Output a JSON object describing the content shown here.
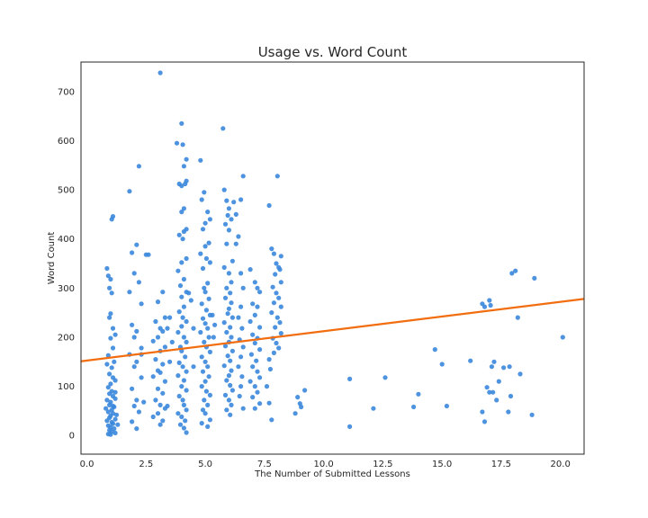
{
  "chart_data": {
    "type": "scatter",
    "title": "Usage vs. Word Count",
    "xlabel": "The Number of Submitted Lessons",
    "ylabel": "Word Count",
    "xlim": [
      -0.25,
      21.0
    ],
    "ylim": [
      -38,
      760
    ],
    "xticks": [
      "0.0",
      "2.5",
      "5.0",
      "7.5",
      "10.0",
      "12.5",
      "15.0",
      "17.5",
      "20.0"
    ],
    "yticks": [
      "0",
      "100",
      "200",
      "300",
      "400",
      "500",
      "600",
      "700"
    ],
    "grid": false,
    "colors": {
      "points": "#3a87dc",
      "trend": "#f26d0f",
      "frame": "#262626"
    },
    "trend_line": {
      "x": [
        -0.25,
        21.0
      ],
      "y": [
        151,
        278
      ]
    },
    "points": [
      [
        0.85,
        340
      ],
      [
        0.9,
        325
      ],
      [
        1.0,
        318
      ],
      [
        0.95,
        300
      ],
      [
        1.05,
        290
      ],
      [
        1.0,
        248
      ],
      [
        0.95,
        240
      ],
      [
        1.1,
        218
      ],
      [
        1.2,
        205
      ],
      [
        1.0,
        198
      ],
      [
        1.1,
        178
      ],
      [
        0.9,
        163
      ],
      [
        1.15,
        150
      ],
      [
        0.85,
        145
      ],
      [
        1.05,
        138
      ],
      [
        0.95,
        125
      ],
      [
        1.1,
        118
      ],
      [
        1.2,
        112
      ],
      [
        1.0,
        105
      ],
      [
        0.9,
        98
      ],
      [
        1.05,
        90
      ],
      [
        0.95,
        85
      ],
      [
        1.1,
        80
      ],
      [
        1.2,
        75
      ],
      [
        0.85,
        72
      ],
      [
        1.0,
        68
      ],
      [
        0.95,
        62
      ],
      [
        1.15,
        58
      ],
      [
        1.05,
        52
      ],
      [
        0.9,
        48
      ],
      [
        1.1,
        45
      ],
      [
        1.0,
        40
      ],
      [
        0.95,
        36
      ],
      [
        1.2,
        33
      ],
      [
        0.85,
        30
      ],
      [
        1.05,
        27
      ],
      [
        1.1,
        24
      ],
      [
        0.9,
        20
      ],
      [
        1.0,
        17
      ],
      [
        1.15,
        14
      ],
      [
        0.95,
        11
      ],
      [
        1.05,
        8
      ],
      [
        1.2,
        5
      ],
      [
        0.9,
        3
      ],
      [
        1.0,
        2
      ],
      [
        1.1,
        60
      ],
      [
        1.25,
        42
      ],
      [
        0.8,
        55
      ],
      [
        1.3,
        22
      ],
      [
        1.2,
        88
      ],
      [
        1.1,
        446
      ],
      [
        1.05,
        440
      ],
      [
        1.8,
        497
      ],
      [
        2.2,
        548
      ],
      [
        1.9,
        372
      ],
      [
        2.1,
        388
      ],
      [
        2.0,
        330
      ],
      [
        2.2,
        312
      ],
      [
        1.8,
        292
      ],
      [
        2.3,
        268
      ],
      [
        1.9,
        225
      ],
      [
        2.1,
        212
      ],
      [
        2.0,
        200
      ],
      [
        2.3,
        178
      ],
      [
        1.8,
        165
      ],
      [
        2.1,
        150
      ],
      [
        2.0,
        140
      ],
      [
        2.3,
        118
      ],
      [
        1.9,
        95
      ],
      [
        2.1,
        72
      ],
      [
        2.0,
        60
      ],
      [
        2.2,
        48
      ],
      [
        1.9,
        28
      ],
      [
        2.1,
        14
      ],
      [
        2.3,
        165
      ],
      [
        2.4,
        68
      ],
      [
        2.6,
        368
      ],
      [
        2.5,
        368
      ],
      [
        3.1,
        738
      ],
      [
        3.2,
        292
      ],
      [
        3.0,
        272
      ],
      [
        3.3,
        240
      ],
      [
        2.9,
        232
      ],
      [
        3.1,
        218
      ],
      [
        3.2,
        212
      ],
      [
        3.0,
        200
      ],
      [
        2.8,
        192
      ],
      [
        3.3,
        180
      ],
      [
        3.1,
        172
      ],
      [
        2.9,
        155
      ],
      [
        3.2,
        145
      ],
      [
        3.0,
        132
      ],
      [
        3.1,
        128
      ],
      [
        2.8,
        120
      ],
      [
        3.3,
        110
      ],
      [
        3.0,
        95
      ],
      [
        3.2,
        86
      ],
      [
        2.9,
        72
      ],
      [
        3.1,
        62
      ],
      [
        3.3,
        55
      ],
      [
        3.0,
        45
      ],
      [
        2.8,
        38
      ],
      [
        3.2,
        30
      ],
      [
        3.1,
        22
      ],
      [
        3.4,
        60
      ],
      [
        3.5,
        150
      ],
      [
        3.6,
        190
      ],
      [
        3.5,
        240
      ],
      [
        3.4,
        218
      ],
      [
        3.8,
        595
      ],
      [
        4.0,
        635
      ],
      [
        4.05,
        592
      ],
      [
        4.2,
        562
      ],
      [
        4.1,
        548
      ],
      [
        3.9,
        512
      ],
      [
        4.0,
        508
      ],
      [
        4.2,
        518
      ],
      [
        4.15,
        512
      ],
      [
        4.1,
        462
      ],
      [
        4.0,
        455
      ],
      [
        4.2,
        420
      ],
      [
        4.1,
        415
      ],
      [
        3.9,
        408
      ],
      [
        4.05,
        400
      ],
      [
        4.2,
        360
      ],
      [
        4.0,
        352
      ],
      [
        3.85,
        335
      ],
      [
        4.1,
        318
      ],
      [
        3.95,
        305
      ],
      [
        4.2,
        292
      ],
      [
        4.0,
        282
      ],
      [
        4.1,
        262
      ],
      [
        3.9,
        252
      ],
      [
        4.05,
        240
      ],
      [
        4.2,
        232
      ],
      [
        4.0,
        222
      ],
      [
        3.85,
        210
      ],
      [
        4.1,
        200
      ],
      [
        4.2,
        190
      ],
      [
        3.95,
        180
      ],
      [
        4.0,
        172
      ],
      [
        4.15,
        160
      ],
      [
        3.9,
        148
      ],
      [
        4.05,
        140
      ],
      [
        4.2,
        130
      ],
      [
        3.85,
        122
      ],
      [
        4.1,
        112
      ],
      [
        4.0,
        100
      ],
      [
        4.2,
        92
      ],
      [
        3.9,
        80
      ],
      [
        4.05,
        72
      ],
      [
        4.1,
        62
      ],
      [
        4.2,
        52
      ],
      [
        3.85,
        45
      ],
      [
        4.0,
        38
      ],
      [
        4.15,
        30
      ],
      [
        3.95,
        22
      ],
      [
        4.1,
        15
      ],
      [
        4.2,
        6
      ],
      [
        4.3,
        290
      ],
      [
        4.4,
        275
      ],
      [
        4.5,
        218
      ],
      [
        4.5,
        140
      ],
      [
        4.8,
        560
      ],
      [
        4.95,
        495
      ],
      [
        4.85,
        480
      ],
      [
        5.1,
        455
      ],
      [
        5.2,
        440
      ],
      [
        5.0,
        432
      ],
      [
        4.9,
        420
      ],
      [
        5.15,
        392
      ],
      [
        5.0,
        385
      ],
      [
        4.8,
        370
      ],
      [
        5.05,
        360
      ],
      [
        5.2,
        352
      ],
      [
        4.9,
        340
      ],
      [
        5.1,
        310
      ],
      [
        4.95,
        300
      ],
      [
        5.0,
        292
      ],
      [
        5.15,
        278
      ],
      [
        4.85,
        268
      ],
      [
        5.05,
        255
      ],
      [
        5.2,
        245
      ],
      [
        4.9,
        238
      ],
      [
        5.0,
        228
      ],
      [
        5.1,
        218
      ],
      [
        4.8,
        210
      ],
      [
        5.15,
        200
      ],
      [
        4.95,
        190
      ],
      [
        5.05,
        180
      ],
      [
        5.2,
        170
      ],
      [
        4.85,
        160
      ],
      [
        5.0,
        150
      ],
      [
        5.1,
        140
      ],
      [
        4.9,
        130
      ],
      [
        5.15,
        120
      ],
      [
        5.0,
        110
      ],
      [
        4.85,
        100
      ],
      [
        5.05,
        90
      ],
      [
        5.2,
        82
      ],
      [
        4.95,
        72
      ],
      [
        5.1,
        62
      ],
      [
        4.9,
        52
      ],
      [
        5.0,
        45
      ],
      [
        5.2,
        32
      ],
      [
        4.85,
        25
      ],
      [
        5.1,
        18
      ],
      [
        5.3,
        245
      ],
      [
        5.4,
        225
      ],
      [
        5.35,
        200
      ],
      [
        5.75,
        625
      ],
      [
        5.8,
        500
      ],
      [
        5.9,
        478
      ],
      [
        6.0,
        462
      ],
      [
        5.95,
        448
      ],
      [
        6.1,
        440
      ],
      [
        5.85,
        430
      ],
      [
        6.0,
        418
      ],
      [
        5.9,
        390
      ],
      [
        6.15,
        355
      ],
      [
        5.8,
        342
      ],
      [
        6.0,
        330
      ],
      [
        6.1,
        312
      ],
      [
        5.9,
        300
      ],
      [
        6.05,
        290
      ],
      [
        5.85,
        280
      ],
      [
        6.1,
        270
      ],
      [
        6.0,
        258
      ],
      [
        5.95,
        248
      ],
      [
        6.15,
        240
      ],
      [
        5.8,
        230
      ],
      [
        6.05,
        220
      ],
      [
        5.9,
        210
      ],
      [
        6.1,
        200
      ],
      [
        6.0,
        190
      ],
      [
        5.85,
        182
      ],
      [
        6.15,
        172
      ],
      [
        5.95,
        162
      ],
      [
        6.05,
        152
      ],
      [
        5.8,
        142
      ],
      [
        6.1,
        132
      ],
      [
        6.0,
        122
      ],
      [
        5.9,
        112
      ],
      [
        6.05,
        102
      ],
      [
        6.15,
        92
      ],
      [
        5.85,
        82
      ],
      [
        6.0,
        72
      ],
      [
        6.1,
        62
      ],
      [
        5.9,
        52
      ],
      [
        6.05,
        42
      ],
      [
        6.2,
        475
      ],
      [
        6.3,
        450
      ],
      [
        6.3,
        390
      ],
      [
        6.6,
        528
      ],
      [
        6.5,
        480
      ],
      [
        6.4,
        405
      ],
      [
        6.5,
        330
      ],
      [
        6.6,
        300
      ],
      [
        6.5,
        262
      ],
      [
        6.4,
        240
      ],
      [
        6.55,
        218
      ],
      [
        6.45,
        195
      ],
      [
        6.6,
        180
      ],
      [
        6.5,
        160
      ],
      [
        6.4,
        140
      ],
      [
        6.55,
        120
      ],
      [
        6.5,
        100
      ],
      [
        6.45,
        80
      ],
      [
        6.6,
        55
      ],
      [
        6.9,
        338
      ],
      [
        7.1,
        312
      ],
      [
        7.2,
        300
      ],
      [
        7.3,
        292
      ],
      [
        7.0,
        268
      ],
      [
        7.2,
        262
      ],
      [
        7.1,
        245
      ],
      [
        6.9,
        232
      ],
      [
        7.3,
        220
      ],
      [
        7.0,
        205
      ],
      [
        7.2,
        198
      ],
      [
        7.1,
        188
      ],
      [
        7.3,
        175
      ],
      [
        6.95,
        165
      ],
      [
        7.15,
        152
      ],
      [
        7.0,
        140
      ],
      [
        7.2,
        130
      ],
      [
        7.3,
        118
      ],
      [
        6.9,
        110
      ],
      [
        7.1,
        100
      ],
      [
        7.2,
        88
      ],
      [
        7.0,
        78
      ],
      [
        7.3,
        65
      ],
      [
        7.1,
        55
      ],
      [
        7.7,
        468
      ],
      [
        8.05,
        528
      ],
      [
        7.8,
        380
      ],
      [
        7.9,
        370
      ],
      [
        8.2,
        365
      ],
      [
        8.0,
        350
      ],
      [
        8.1,
        342
      ],
      [
        8.15,
        338
      ],
      [
        7.95,
        328
      ],
      [
        8.2,
        312
      ],
      [
        7.85,
        302
      ],
      [
        8.0,
        290
      ],
      [
        8.1,
        280
      ],
      [
        7.9,
        270
      ],
      [
        8.2,
        262
      ],
      [
        7.8,
        250
      ],
      [
        8.05,
        240
      ],
      [
        8.15,
        230
      ],
      [
        7.95,
        220
      ],
      [
        8.2,
        208
      ],
      [
        7.85,
        198
      ],
      [
        8.0,
        188
      ],
      [
        8.1,
        178
      ],
      [
        7.9,
        168
      ],
      [
        7.7,
        155
      ],
      [
        7.75,
        135
      ],
      [
        7.6,
        100
      ],
      [
        7.7,
        66
      ],
      [
        7.8,
        32
      ],
      [
        8.9,
        78
      ],
      [
        9.0,
        65
      ],
      [
        9.2,
        92
      ],
      [
        8.8,
        45
      ],
      [
        9.05,
        58
      ],
      [
        11.1,
        115
      ],
      [
        11.1,
        18
      ],
      [
        12.1,
        55
      ],
      [
        12.6,
        118
      ],
      [
        13.8,
        58
      ],
      [
        14.0,
        84
      ],
      [
        14.7,
        175
      ],
      [
        15.0,
        145
      ],
      [
        15.2,
        60
      ],
      [
        16.2,
        152
      ],
      [
        16.7,
        268
      ],
      [
        16.8,
        262
      ],
      [
        16.9,
        98
      ],
      [
        17.0,
        88
      ],
      [
        16.7,
        48
      ],
      [
        16.8,
        28
      ],
      [
        17.0,
        275
      ],
      [
        17.05,
        265
      ],
      [
        17.1,
        140
      ],
      [
        17.2,
        150
      ],
      [
        17.15,
        88
      ],
      [
        17.3,
        72
      ],
      [
        17.4,
        110
      ],
      [
        17.6,
        138
      ],
      [
        17.85,
        140
      ],
      [
        17.95,
        330
      ],
      [
        18.1,
        335
      ],
      [
        18.2,
        240
      ],
      [
        18.3,
        125
      ],
      [
        17.9,
        80
      ],
      [
        17.8,
        48
      ],
      [
        18.9,
        320
      ],
      [
        18.8,
        42
      ],
      [
        20.1,
        200
      ]
    ]
  }
}
